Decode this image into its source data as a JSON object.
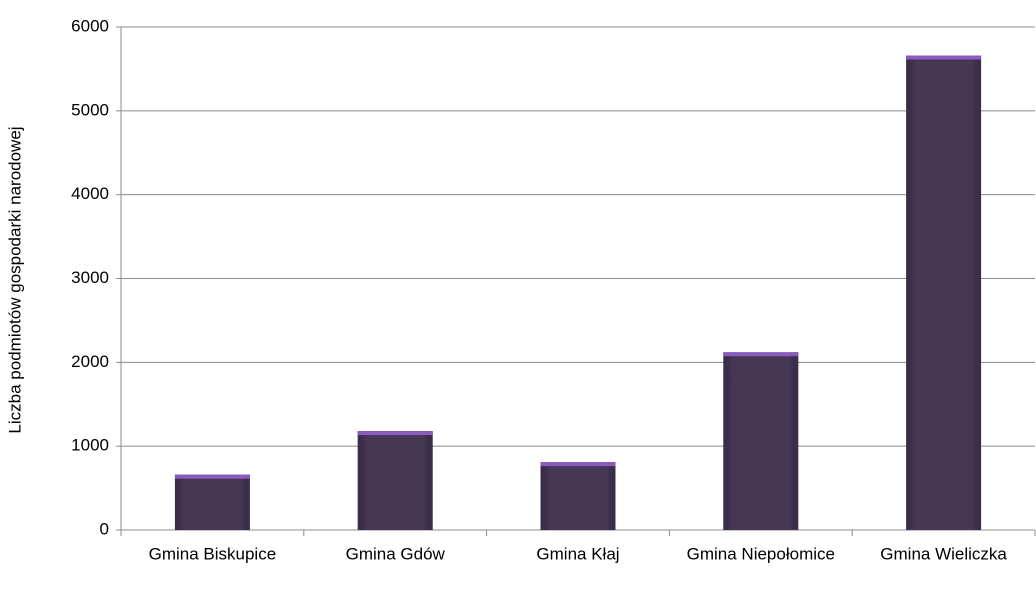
{
  "chart_data": {
    "type": "bar",
    "y_label": "Liczba podmiotów gospodarki narodowej",
    "categories": [
      "Gmina Biskupice",
      "Gmina Gdów",
      "Gmina Kłaj",
      "Gmina Niepołomice",
      "Gmina Wieliczka"
    ],
    "values": [
      660,
      1180,
      810,
      2120,
      5660
    ],
    "color": "#463755",
    "ylim": [
      0,
      6000
    ],
    "yticks": [
      0,
      1000,
      2000,
      3000,
      4000,
      5000,
      6000
    ],
    "grid": true
  }
}
